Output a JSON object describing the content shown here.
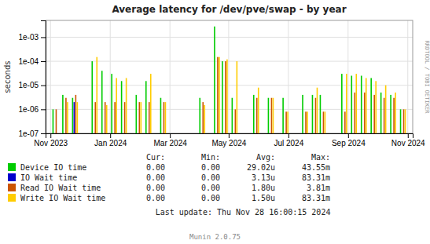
{
  "chart_data": {
    "type": "bar",
    "title": "Average latency for /dev/pve/swap - by year",
    "ylabel": "seconds",
    "log": "y",
    "grid": true,
    "legend": "bottom",
    "x": [
      5,
      15,
      25,
      45,
      55,
      65,
      75,
      90,
      100,
      115,
      155,
      170,
      178,
      188,
      210,
      225,
      240,
      260,
      270,
      278,
      300,
      310,
      320,
      330,
      340,
      350,
      360
    ],
    "xlim": [
      -5,
      370
    ],
    "xticks": [
      {
        "value": 0,
        "label": "Nov 2023"
      },
      {
        "value": 61,
        "label": "Jan 2024"
      },
      {
        "value": 122,
        "label": "Mar 2024"
      },
      {
        "value": 182,
        "label": "May 2024"
      },
      {
        "value": 243,
        "label": "Jul 2024"
      },
      {
        "value": 304,
        "label": "Sep 2024"
      },
      {
        "value": 365,
        "label": "Nov 2024"
      }
    ],
    "ylim": [
      1e-07,
      0.005
    ],
    "yticks": [
      {
        "value": 1e-07,
        "label": "1e-07"
      },
      {
        "value": 1e-06,
        "label": "1e-06"
      },
      {
        "value": 1e-05,
        "label": "1e-05"
      },
      {
        "value": 0.0001,
        "label": "1e-04"
      },
      {
        "value": 0.001,
        "label": "1e-03"
      }
    ],
    "series": [
      {
        "name": "Device IO time",
        "color": "#00cc00",
        "values": [
          1e-06,
          4e-06,
          3e-06,
          0.0001,
          4e-05,
          3e-05,
          1.5e-05,
          4e-06,
          1.5e-05,
          3e-06,
          3e-06,
          0.0028,
          0.0001,
          3e-06,
          4e-06,
          3e-06,
          3e-06,
          4e-06,
          4e-06,
          4e-06,
          3e-05,
          2.5e-05,
          2.5e-05,
          2e-05,
          5e-06,
          4e-06,
          1e-06
        ]
      },
      {
        "name": "IO Wait time",
        "color": "#0000cc",
        "values": [
          1e-07,
          1e-07,
          2e-06,
          1e-07,
          1e-07,
          1e-07,
          1e-07,
          1e-07,
          1e-07,
          1e-07,
          1e-07,
          1e-07,
          1e-07,
          1e-07,
          1e-07,
          1e-07,
          1e-07,
          1e-07,
          1e-07,
          1e-07,
          1e-07,
          1e-07,
          1e-07,
          1e-07,
          1e-07,
          1e-07,
          1e-07
        ]
      },
      {
        "name": "Read IO Wait time",
        "color": "#cc5500",
        "values": [
          1e-06,
          3e-06,
          4e-06,
          2e-06,
          2e-06,
          2e-06,
          2e-06,
          2e-06,
          2e-06,
          2e-06,
          2e-06,
          0.00015,
          0.0001,
          1e-06,
          3e-06,
          3e-06,
          8e-07,
          8e-07,
          3e-06,
          8e-07,
          8e-07,
          5e-06,
          5e-06,
          4e-06,
          3e-06,
          3e-06,
          1e-06
        ]
      },
      {
        "name": "Write IO Wait time",
        "color": "#ffcc00",
        "values": [
          1e-07,
          2e-06,
          2e-06,
          0.00015,
          1.5e-06,
          2e-05,
          2e-05,
          2e-06,
          3e-05,
          2e-06,
          1.5e-06,
          0.00015,
          0.00012,
          0.0001,
          8e-06,
          3e-06,
          8e-07,
          8e-07,
          8e-06,
          8e-07,
          3e-05,
          3e-05,
          2e-05,
          1.5e-05,
          1e-05,
          5e-06,
          1e-06
        ]
      }
    ],
    "table": {
      "columns": [
        "Cur:",
        "Min:",
        "Avg:",
        "Max:"
      ],
      "rows": [
        [
          "0.00",
          "0.00",
          "29.02u",
          "43.55m"
        ],
        [
          "0.00",
          "0.00",
          "3.13u",
          "83.31m"
        ],
        [
          "0.00",
          "0.00",
          "1.80u",
          "3.81m"
        ],
        [
          "0.00",
          "0.00",
          "1.50u",
          "83.31m"
        ]
      ]
    },
    "annotations": [
      "RRDTOOL / TOBI OETIKER",
      "Last update: Thu Nov 28 16:00:15 2024",
      "Munin 2.0.75"
    ]
  }
}
